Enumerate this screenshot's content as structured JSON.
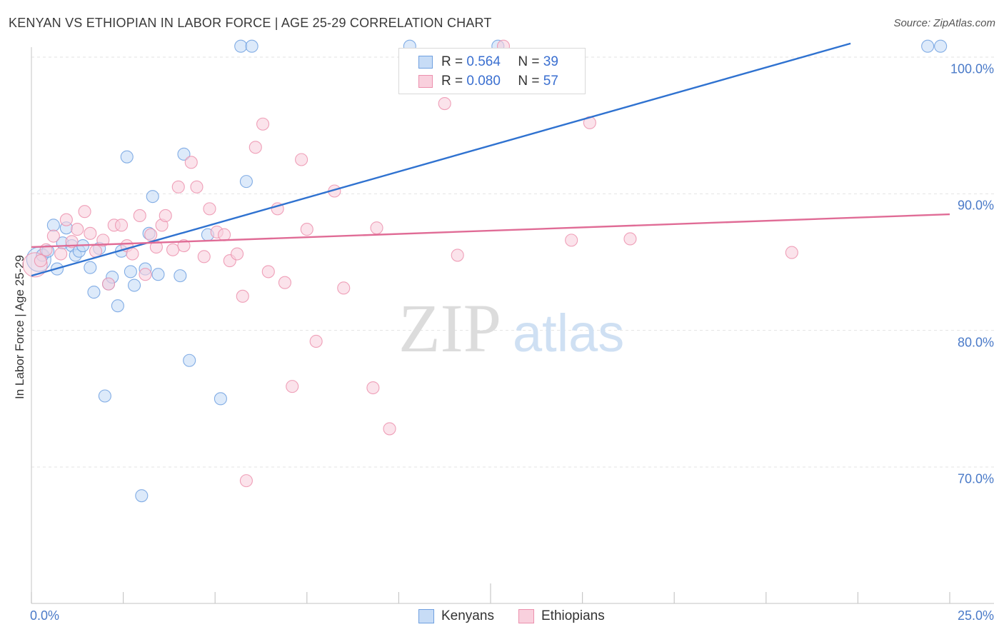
{
  "title": "KENYAN VS ETHIOPIAN IN LABOR FORCE | AGE 25-29 CORRELATION CHART",
  "source": "Source: ZipAtlas.com",
  "watermark": {
    "zip": "ZIP",
    "atlas": "atlas"
  },
  "legend": {
    "r_label": "R =",
    "n_label": "N =",
    "series": [
      {
        "name": "Kenyans",
        "r": "0.564",
        "n": "39"
      },
      {
        "name": "Ethiopians",
        "r": "0.080",
        "n": "57"
      }
    ]
  },
  "chart_data": {
    "type": "scatter",
    "title": "KENYAN VS ETHIOPIAN IN LABOR FORCE | AGE 25-29 CORRELATION CHART",
    "xlabel": "",
    "ylabel": "In Labor Force | Age 25-29",
    "xlim": [
      0,
      25
    ],
    "ylim": [
      60,
      102
    ],
    "x_tick_labels": [
      "0.0%",
      "25.0%"
    ],
    "y_tick_labels": [
      "70.0%",
      "80.0%",
      "90.0%",
      "100.0%"
    ],
    "y_ticks": [
      70,
      80,
      90,
      100
    ],
    "colors": {
      "kenyans": "#6fa0e0",
      "ethiopians": "#ec90ad",
      "kenyans_line": "#2f72d0",
      "ethiopians_line": "#e06c96"
    },
    "series": [
      {
        "name": "Kenyans",
        "r": 0.564,
        "n": 39,
        "trend": {
          "x": [
            0,
            22.3
          ],
          "y": [
            84.0,
            101.0
          ]
        },
        "points": [
          {
            "x": 0.2,
            "y": 85.2,
            "big": true
          },
          {
            "x": 0.3,
            "y": 85.5
          },
          {
            "x": 0.45,
            "y": 85.8
          },
          {
            "x": 0.6,
            "y": 87.7
          },
          {
            "x": 0.7,
            "y": 84.5
          },
          {
            "x": 0.85,
            "y": 86.4
          },
          {
            "x": 0.95,
            "y": 87.5
          },
          {
            "x": 1.1,
            "y": 86.2
          },
          {
            "x": 1.2,
            "y": 85.5
          },
          {
            "x": 1.3,
            "y": 85.8
          },
          {
            "x": 1.4,
            "y": 86.2
          },
          {
            "x": 1.6,
            "y": 84.6
          },
          {
            "x": 1.7,
            "y": 82.8
          },
          {
            "x": 1.85,
            "y": 86.0
          },
          {
            "x": 2.0,
            "y": 75.2
          },
          {
            "x": 2.1,
            "y": 83.4
          },
          {
            "x": 2.2,
            "y": 83.9
          },
          {
            "x": 2.35,
            "y": 81.8
          },
          {
            "x": 2.45,
            "y": 85.8
          },
          {
            "x": 2.6,
            "y": 92.7
          },
          {
            "x": 2.7,
            "y": 84.3
          },
          {
            "x": 2.8,
            "y": 83.3
          },
          {
            "x": 3.0,
            "y": 67.9
          },
          {
            "x": 3.1,
            "y": 84.5
          },
          {
            "x": 3.2,
            "y": 87.1
          },
          {
            "x": 3.3,
            "y": 89.8
          },
          {
            "x": 3.45,
            "y": 84.1
          },
          {
            "x": 4.05,
            "y": 84.0
          },
          {
            "x": 4.15,
            "y": 92.9
          },
          {
            "x": 4.3,
            "y": 77.8
          },
          {
            "x": 4.8,
            "y": 87.0
          },
          {
            "x": 5.15,
            "y": 75.0
          },
          {
            "x": 5.7,
            "y": 100.8
          },
          {
            "x": 5.85,
            "y": 90.9
          },
          {
            "x": 6.0,
            "y": 100.8
          },
          {
            "x": 10.3,
            "y": 100.8
          },
          {
            "x": 12.7,
            "y": 100.8
          },
          {
            "x": 24.4,
            "y": 100.8
          },
          {
            "x": 24.75,
            "y": 100.8
          }
        ]
      },
      {
        "name": "Ethiopians",
        "r": 0.08,
        "n": 57,
        "trend": {
          "x": [
            0,
            25
          ],
          "y": [
            86.1,
            88.5
          ]
        },
        "points": [
          {
            "x": 0.1,
            "y": 84.8,
            "big": true
          },
          {
            "x": 0.25,
            "y": 85.1
          },
          {
            "x": 0.4,
            "y": 85.9
          },
          {
            "x": 0.6,
            "y": 86.9
          },
          {
            "x": 0.8,
            "y": 85.6
          },
          {
            "x": 0.95,
            "y": 88.1
          },
          {
            "x": 1.1,
            "y": 86.5
          },
          {
            "x": 1.25,
            "y": 87.4
          },
          {
            "x": 1.45,
            "y": 88.7
          },
          {
            "x": 1.6,
            "y": 87.1
          },
          {
            "x": 1.75,
            "y": 85.8
          },
          {
            "x": 1.95,
            "y": 86.6
          },
          {
            "x": 2.1,
            "y": 83.4
          },
          {
            "x": 2.25,
            "y": 87.7
          },
          {
            "x": 2.45,
            "y": 87.7
          },
          {
            "x": 2.6,
            "y": 86.2
          },
          {
            "x": 2.75,
            "y": 85.6
          },
          {
            "x": 2.95,
            "y": 88.4
          },
          {
            "x": 3.1,
            "y": 84.1
          },
          {
            "x": 3.25,
            "y": 87.0
          },
          {
            "x": 3.4,
            "y": 86.1
          },
          {
            "x": 3.55,
            "y": 87.7
          },
          {
            "x": 3.65,
            "y": 88.4
          },
          {
            "x": 3.85,
            "y": 85.9
          },
          {
            "x": 4.0,
            "y": 90.5
          },
          {
            "x": 4.15,
            "y": 86.2
          },
          {
            "x": 4.35,
            "y": 92.3
          },
          {
            "x": 4.5,
            "y": 90.5
          },
          {
            "x": 4.7,
            "y": 85.4
          },
          {
            "x": 4.85,
            "y": 88.9
          },
          {
            "x": 5.05,
            "y": 87.2
          },
          {
            "x": 5.25,
            "y": 87.0
          },
          {
            "x": 5.4,
            "y": 85.1
          },
          {
            "x": 5.6,
            "y": 85.6
          },
          {
            "x": 5.75,
            "y": 82.5
          },
          {
            "x": 5.85,
            "y": 69.0
          },
          {
            "x": 6.1,
            "y": 93.4
          },
          {
            "x": 6.3,
            "y": 95.1
          },
          {
            "x": 6.45,
            "y": 84.3
          },
          {
            "x": 6.7,
            "y": 88.9
          },
          {
            "x": 6.9,
            "y": 83.5
          },
          {
            "x": 7.1,
            "y": 75.9
          },
          {
            "x": 7.35,
            "y": 92.5
          },
          {
            "x": 7.5,
            "y": 87.4
          },
          {
            "x": 7.75,
            "y": 79.2
          },
          {
            "x": 8.25,
            "y": 90.2
          },
          {
            "x": 8.5,
            "y": 83.1
          },
          {
            "x": 9.3,
            "y": 75.8
          },
          {
            "x": 9.4,
            "y": 87.5
          },
          {
            "x": 9.75,
            "y": 72.8
          },
          {
            "x": 11.25,
            "y": 96.6
          },
          {
            "x": 11.6,
            "y": 85.5
          },
          {
            "x": 12.85,
            "y": 100.8
          },
          {
            "x": 14.7,
            "y": 86.6
          },
          {
            "x": 15.2,
            "y": 95.2
          },
          {
            "x": 16.3,
            "y": 86.7
          },
          {
            "x": 20.7,
            "y": 85.7
          }
        ]
      }
    ]
  }
}
